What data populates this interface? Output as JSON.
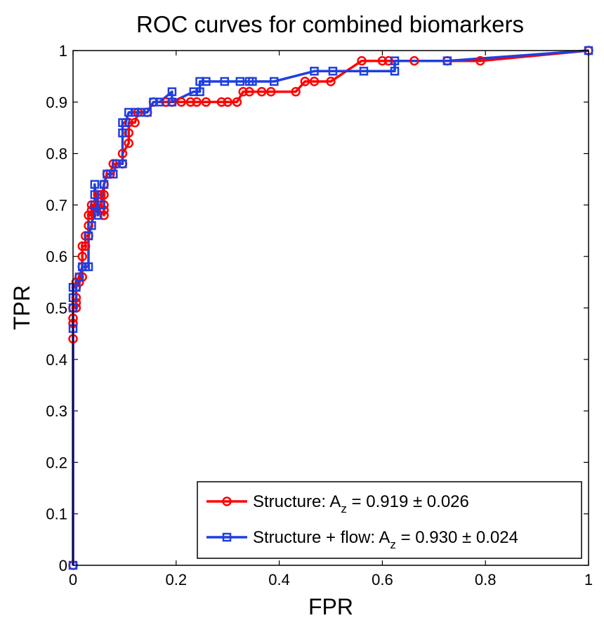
{
  "chart_data": {
    "type": "line",
    "title": "ROC curves for combined biomarkers",
    "xlabel": "FPR",
    "ylabel": "TPR",
    "xlim": [
      0,
      1
    ],
    "ylim": [
      0,
      1
    ],
    "xticks": [
      "0",
      "0.2",
      "0.4",
      "0.6",
      "0.8",
      "1"
    ],
    "yticks": [
      "0",
      "0.1",
      "0.2",
      "0.3",
      "0.4",
      "0.5",
      "0.6",
      "0.7",
      "0.8",
      "0.9",
      "1"
    ],
    "grid": false,
    "legend_position": "bottom-right",
    "series": [
      {
        "legend_prefix": "Structure: A",
        "legend_subscript": "z",
        "legend_suffix": " = 0.919 ± 0.026",
        "color": "#ff0000",
        "marker": "circle",
        "x": [
          0,
          0,
          0,
          0,
          0,
          0.006,
          0.006,
          0.006,
          0.006,
          0.006,
          0.012,
          0.012,
          0.018,
          0.018,
          0.018,
          0.018,
          0.024,
          0.024,
          0.03,
          0.03,
          0.03,
          0.036,
          0.036,
          0.036,
          0.042,
          0.048,
          0.048,
          0.054,
          0.06,
          0.06,
          0.06,
          0.06,
          0.06,
          0.066,
          0.072,
          0.078,
          0.084,
          0.096,
          0.096,
          0.108,
          0.108,
          0.108,
          0.12,
          0.126,
          0.144,
          0.156,
          0.18,
          0.192,
          0.21,
          0.228,
          0.24,
          0.258,
          0.288,
          0.3,
          0.318,
          0.33,
          0.342,
          0.366,
          0.384,
          0.432,
          0.45,
          0.468,
          0.5,
          0.56,
          0.6,
          0.612,
          0.662,
          0.726,
          0.79,
          1.0
        ],
        "y": [
          0,
          0.44,
          0.47,
          0.48,
          0.5,
          0.5,
          0.51,
          0.52,
          0.54,
          0.55,
          0.55,
          0.56,
          0.56,
          0.58,
          0.6,
          0.62,
          0.62,
          0.64,
          0.64,
          0.66,
          0.68,
          0.68,
          0.69,
          0.7,
          0.7,
          0.7,
          0.72,
          0.72,
          0.72,
          0.7,
          0.69,
          0.68,
          0.74,
          0.76,
          0.76,
          0.78,
          0.78,
          0.78,
          0.8,
          0.82,
          0.84,
          0.86,
          0.86,
          0.88,
          0.88,
          0.9,
          0.9,
          0.9,
          0.9,
          0.9,
          0.9,
          0.9,
          0.9,
          0.9,
          0.9,
          0.92,
          0.92,
          0.92,
          0.92,
          0.92,
          0.94,
          0.94,
          0.94,
          0.98,
          0.98,
          0.98,
          0.98,
          0.98,
          0.98,
          1.0
        ]
      },
      {
        "legend_prefix": "Structure + flow: A",
        "legend_subscript": "z",
        "legend_suffix": " = 0.930 ± 0.024",
        "color": "#1f3fe0",
        "marker": "square",
        "x": [
          0,
          0,
          0,
          0,
          0,
          0.006,
          0.012,
          0.018,
          0.024,
          0.024,
          0.03,
          0.03,
          0.036,
          0.042,
          0.042,
          0.042,
          0.048,
          0.054,
          0.06,
          0.066,
          0.078,
          0.084,
          0.096,
          0.096,
          0.096,
          0.102,
          0.108,
          0.12,
          0.132,
          0.144,
          0.156,
          0.168,
          0.192,
          0.192,
          0.234,
          0.246,
          0.246,
          0.258,
          0.294,
          0.324,
          0.342,
          0.348,
          0.39,
          0.468,
          0.504,
          0.564,
          0.624,
          0.624,
          0.726,
          1.0
        ],
        "y": [
          0,
          0.46,
          0.5,
          0.52,
          0.54,
          0.54,
          0.56,
          0.58,
          0.58,
          0.58,
          0.58,
          0.64,
          0.66,
          0.7,
          0.72,
          0.74,
          0.68,
          0.7,
          0.74,
          0.76,
          0.76,
          0.78,
          0.78,
          0.84,
          0.86,
          0.86,
          0.88,
          0.88,
          0.88,
          0.88,
          0.9,
          0.9,
          0.92,
          0.9,
          0.92,
          0.92,
          0.94,
          0.94,
          0.94,
          0.94,
          0.94,
          0.94,
          0.94,
          0.96,
          0.96,
          0.96,
          0.96,
          0.98,
          0.98,
          1.0
        ]
      }
    ]
  }
}
